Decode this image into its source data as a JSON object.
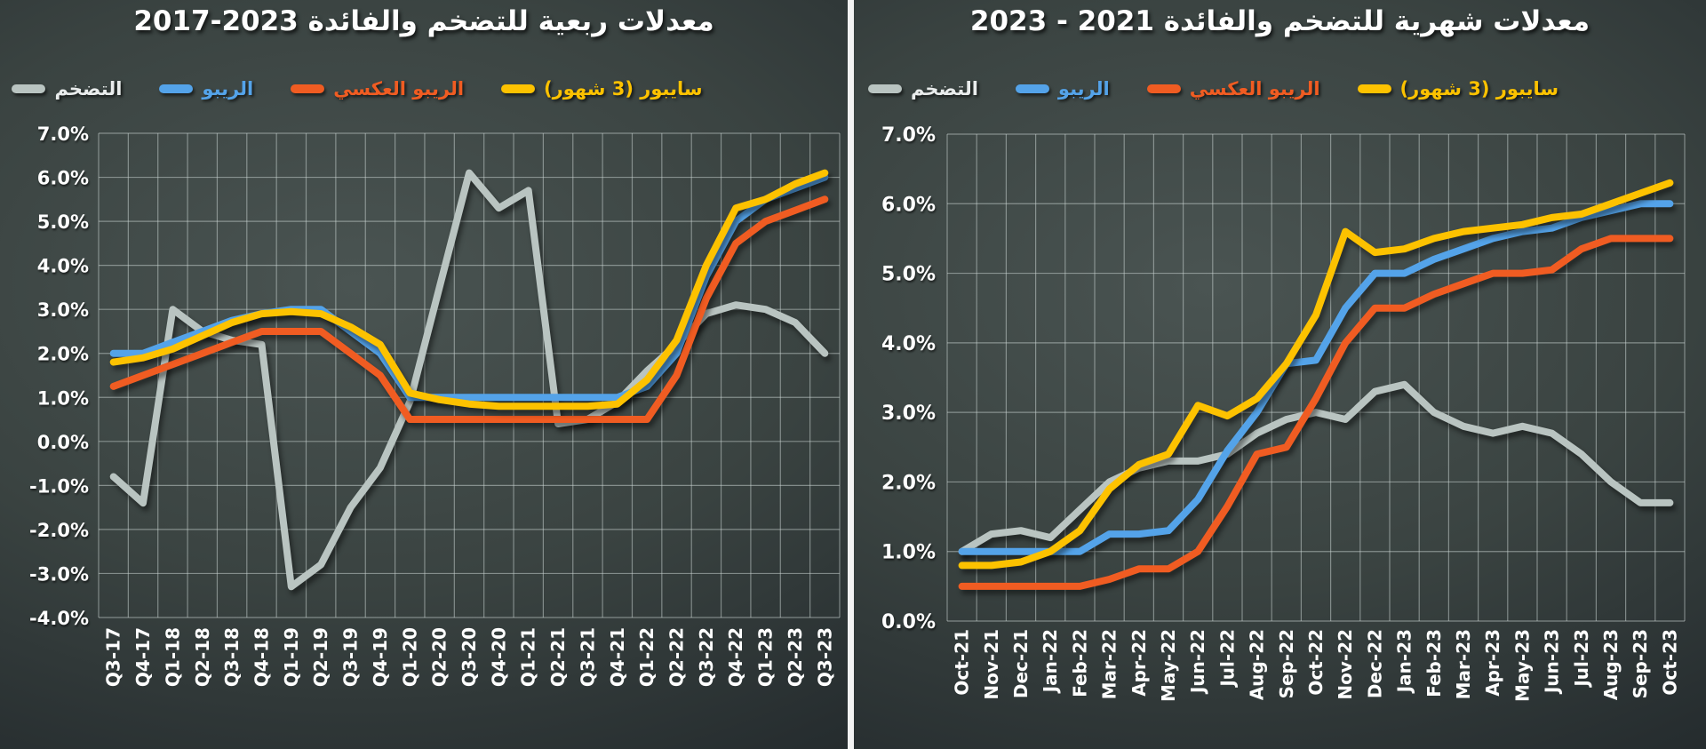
{
  "page": {
    "background_color": "#323b3c",
    "divider_color": "#f2f2f2",
    "text_color": "#ffffff",
    "grid_color": "#cdd7d5"
  },
  "chart_data": [
    {
      "id": "quarterly-rates",
      "type": "line",
      "title": "معدلات ربعية للتضخم والفائدة 2023-2017",
      "grid": true,
      "legend_position": "top",
      "ylim": [
        -4,
        7
      ],
      "ytick_step": 1,
      "ytick_suffix": "%",
      "categories": [
        "Q3-17",
        "Q4-17",
        "Q1-18",
        "Q2-18",
        "Q3-18",
        "Q4-18",
        "Q1-19",
        "Q2-19",
        "Q3-19",
        "Q4-19",
        "Q1-20",
        "Q2-20",
        "Q3-20",
        "Q4-20",
        "Q1-21",
        "Q2-21",
        "Q3-21",
        "Q4-21",
        "Q1-22",
        "Q2-22",
        "Q3-22",
        "Q4-22",
        "Q1-23",
        "Q2-23",
        "Q3-23"
      ],
      "series": [
        {
          "key": "inflation",
          "name": "التضخم",
          "color": "#b9c4c1",
          "label_color": "#e9ecec",
          "values": [
            -0.8,
            -1.4,
            3.0,
            2.5,
            2.3,
            2.2,
            -3.3,
            -2.8,
            -1.5,
            -0.6,
            0.9,
            3.5,
            6.1,
            5.3,
            5.7,
            0.4,
            0.5,
            0.9,
            1.6,
            2.2,
            2.9,
            3.1,
            3.0,
            2.7,
            2.0
          ]
        },
        {
          "key": "repo",
          "name": "الريبو",
          "color": "#54a3e9",
          "label_color": "#54a3e9",
          "values": [
            2.0,
            2.0,
            2.25,
            2.5,
            2.75,
            2.9,
            3.0,
            3.0,
            2.5,
            2.0,
            1.0,
            1.0,
            1.0,
            1.0,
            1.0,
            1.0,
            1.0,
            1.0,
            1.25,
            2.0,
            3.75,
            5.0,
            5.5,
            5.75,
            6.0
          ]
        },
        {
          "key": "reverse-repo",
          "name": "الريبو العكسي",
          "color": "#f05c22",
          "label_color": "#f05c22",
          "values": [
            1.25,
            1.5,
            1.75,
            2.0,
            2.25,
            2.5,
            2.5,
            2.5,
            2.0,
            1.5,
            0.5,
            0.5,
            0.5,
            0.5,
            0.5,
            0.5,
            0.5,
            0.5,
            0.5,
            1.5,
            3.25,
            4.5,
            5.0,
            5.25,
            5.5
          ]
        },
        {
          "key": "saibor-3m",
          "name": "سايبور (3 شهور)",
          "color": "#fdc200",
          "label_color": "#fdc200",
          "values": [
            1.8,
            1.9,
            2.1,
            2.4,
            2.7,
            2.9,
            2.95,
            2.9,
            2.6,
            2.2,
            1.1,
            0.95,
            0.85,
            0.8,
            0.8,
            0.8,
            0.8,
            0.85,
            1.4,
            2.3,
            4.0,
            5.3,
            5.5,
            5.85,
            6.1
          ]
        }
      ]
    },
    {
      "id": "monthly-rates",
      "type": "line",
      "title": "معدلات شهرية للتضخم والفائدة 2021 - 2023",
      "grid": true,
      "legend_position": "top",
      "ylim": [
        0,
        7
      ],
      "ytick_step": 1,
      "ytick_suffix": "%",
      "categories": [
        "Oct-21",
        "Nov-21",
        "Dec-21",
        "Jan-22",
        "Feb-22",
        "Mar-22",
        "Apr-22",
        "May-22",
        "Jun-22",
        "Jul-22",
        "Aug-22",
        "Sep-22",
        "Oct-22",
        "Nov-22",
        "Dec-22",
        "Jan-23",
        "Feb-23",
        "Mar-23",
        "Apr-23",
        "May-23",
        "Jun-23",
        "Jul-23",
        "Aug-23",
        "Sep-23",
        "Oct-23"
      ],
      "series": [
        {
          "key": "inflation",
          "name": "التضخم",
          "color": "#b9c4c1",
          "label_color": "#e9ecec",
          "values": [
            1.0,
            1.25,
            1.3,
            1.2,
            1.6,
            2.0,
            2.2,
            2.3,
            2.3,
            2.4,
            2.7,
            2.9,
            3.0,
            2.9,
            3.3,
            3.4,
            3.0,
            2.8,
            2.7,
            2.8,
            2.7,
            2.4,
            2.0,
            1.7,
            1.7
          ]
        },
        {
          "key": "repo",
          "name": "الريبو",
          "color": "#54a3e9",
          "label_color": "#54a3e9",
          "values": [
            1.0,
            1.0,
            1.0,
            1.0,
            1.0,
            1.25,
            1.25,
            1.3,
            1.75,
            2.45,
            3.0,
            3.7,
            3.75,
            4.5,
            5.0,
            5.0,
            5.2,
            5.35,
            5.5,
            5.6,
            5.65,
            5.8,
            5.9,
            6.0,
            6.0
          ]
        },
        {
          "key": "reverse-repo",
          "name": "الريبو العكسي",
          "color": "#f05c22",
          "label_color": "#f05c22",
          "values": [
            0.5,
            0.5,
            0.5,
            0.5,
            0.5,
            0.6,
            0.75,
            0.75,
            1.0,
            1.65,
            2.4,
            2.5,
            3.2,
            4.0,
            4.5,
            4.5,
            4.7,
            4.85,
            5.0,
            5.0,
            5.05,
            5.35,
            5.5,
            5.5,
            5.5
          ]
        },
        {
          "key": "saibor-3m",
          "name": "سايبور (3 شهور)",
          "color": "#fdc200",
          "label_color": "#fdc200",
          "values": [
            0.8,
            0.8,
            0.85,
            1.0,
            1.3,
            1.9,
            2.25,
            2.4,
            3.1,
            2.95,
            3.2,
            3.7,
            4.4,
            5.6,
            5.3,
            5.35,
            5.5,
            5.6,
            5.65,
            5.7,
            5.8,
            5.85,
            6.0,
            6.15,
            6.3
          ]
        }
      ]
    }
  ]
}
